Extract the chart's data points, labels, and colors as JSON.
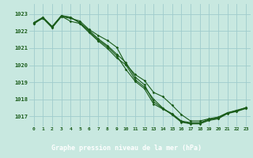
{
  "xlabel": "Graphe pression niveau de la mer (hPa)",
  "bg_color": "#c8e8e0",
  "grid_color": "#a0cccc",
  "line_color": "#1a5c1a",
  "label_bar_color": "#2d6b2d",
  "label_text_color": "#ffffff",
  "xlim": [
    -0.5,
    23.5
  ],
  "ylim": [
    1016.4,
    1023.6
  ],
  "yticks": [
    1017,
    1018,
    1019,
    1020,
    1021,
    1022,
    1023
  ],
  "xticks": [
    0,
    1,
    2,
    3,
    4,
    5,
    6,
    7,
    8,
    9,
    10,
    11,
    12,
    13,
    14,
    15,
    16,
    17,
    18,
    19,
    20,
    21,
    22,
    23
  ],
  "series": [
    [
      1022.5,
      1022.75,
      1022.2,
      1022.85,
      1022.75,
      1022.6,
      1022.1,
      1021.75,
      1021.45,
      1021.05,
      1020.05,
      1019.45,
      1019.1,
      1018.4,
      1018.15,
      1017.65,
      1017.1,
      1016.72,
      1016.72,
      1016.85,
      1016.95,
      1017.2,
      1017.3,
      1017.5
    ],
    [
      1022.45,
      1022.8,
      1022.25,
      1022.9,
      1022.8,
      1022.5,
      1022.05,
      1021.55,
      1021.15,
      1020.65,
      1020.15,
      1019.3,
      1018.85,
      1017.85,
      1017.45,
      1017.15,
      1016.72,
      1016.62,
      1016.62,
      1016.82,
      1016.92,
      1017.2,
      1017.35,
      1017.5
    ],
    [
      1022.5,
      1022.82,
      1022.28,
      1022.92,
      1022.82,
      1022.48,
      1021.98,
      1021.48,
      1021.08,
      1020.55,
      1019.75,
      1019.05,
      1018.62,
      1017.72,
      1017.42,
      1017.12,
      1016.68,
      1016.58,
      1016.58,
      1016.78,
      1016.88,
      1017.18,
      1017.33,
      1017.48
    ],
    [
      1022.42,
      1022.78,
      1022.22,
      1022.88,
      1022.58,
      1022.45,
      1021.92,
      1021.42,
      1020.98,
      1020.42,
      1020.02,
      1019.15,
      1018.72,
      1018.0,
      1017.48,
      1017.08,
      1016.65,
      1016.55,
      1016.55,
      1016.75,
      1016.85,
      1017.15,
      1017.28,
      1017.45
    ]
  ]
}
